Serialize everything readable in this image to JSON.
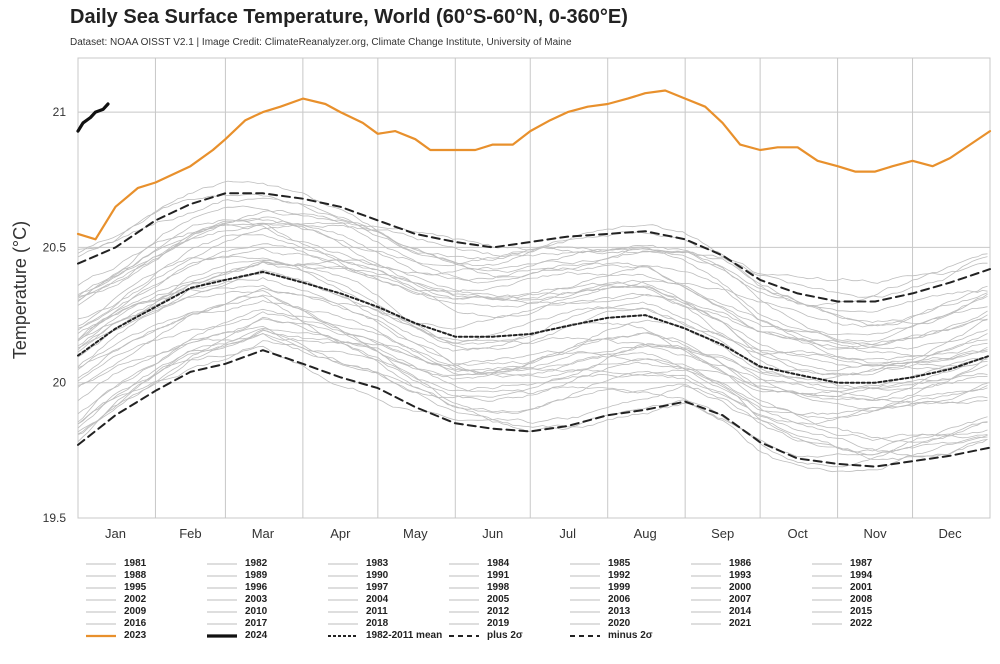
{
  "chart_data": {
    "type": "line",
    "title": "Daily Sea Surface Temperature, World (60°S-60°N, 0-360°E)",
    "subtitle": "Dataset: NOAA OISST V2.1 | Image Credit: ClimateReanalyzer.org, Climate Change Institute, University of Maine",
    "xlabel": "",
    "ylabel": "Temperature (°C)",
    "ylim": [
      19.5,
      21.2
    ],
    "xlim": [
      1,
      366
    ],
    "yticks": [
      19.5,
      20,
      20.5,
      21
    ],
    "ytick_labels": [
      "19.5",
      "20",
      "20.5",
      "21"
    ],
    "month_labels": [
      "Jan",
      "Feb",
      "Mar",
      "Apr",
      "May",
      "Jun",
      "Jul",
      "Aug",
      "Sep",
      "Oct",
      "Nov",
      "Dec"
    ],
    "month_label_days": [
      16,
      46,
      75,
      106,
      136,
      167,
      197,
      228,
      259,
      289,
      320,
      350
    ],
    "month_boundaries": [
      32,
      60,
      91,
      121,
      152,
      182,
      213,
      244,
      274,
      305,
      335
    ],
    "grid": true,
    "legend_position": "bottom",
    "series": [
      {
        "name": "1982-2011 mean",
        "style": "mean",
        "color": "#222222",
        "x": [
          1,
          16,
          32,
          46,
          60,
          75,
          91,
          106,
          121,
          136,
          152,
          167,
          182,
          197,
          213,
          228,
          244,
          259,
          274,
          289,
          305,
          320,
          335,
          350,
          366
        ],
        "y": [
          20.1,
          20.2,
          20.28,
          20.35,
          20.38,
          20.41,
          20.37,
          20.33,
          20.28,
          20.22,
          20.17,
          20.17,
          20.18,
          20.21,
          20.24,
          20.25,
          20.2,
          20.14,
          20.06,
          20.03,
          20.0,
          20.0,
          20.02,
          20.05,
          20.1
        ]
      },
      {
        "name": "plus 2σ",
        "style": "plus2",
        "color": "#222222",
        "x": [
          1,
          16,
          32,
          46,
          60,
          75,
          91,
          106,
          121,
          136,
          152,
          167,
          182,
          197,
          213,
          228,
          244,
          259,
          274,
          289,
          305,
          320,
          335,
          350,
          366
        ],
        "y": [
          20.44,
          20.5,
          20.6,
          20.66,
          20.7,
          20.7,
          20.68,
          20.65,
          20.6,
          20.55,
          20.52,
          20.5,
          20.52,
          20.54,
          20.55,
          20.56,
          20.53,
          20.47,
          20.38,
          20.33,
          20.3,
          20.3,
          20.33,
          20.37,
          20.42
        ]
      },
      {
        "name": "minus 2σ",
        "style": "minus2",
        "color": "#222222",
        "x": [
          1,
          16,
          32,
          46,
          60,
          75,
          91,
          106,
          121,
          136,
          152,
          167,
          182,
          197,
          213,
          228,
          244,
          259,
          274,
          289,
          305,
          320,
          335,
          350,
          366
        ],
        "y": [
          19.77,
          19.88,
          19.97,
          20.04,
          20.07,
          20.12,
          20.07,
          20.02,
          19.98,
          19.91,
          19.85,
          19.83,
          19.82,
          19.84,
          19.88,
          19.9,
          19.93,
          19.88,
          19.78,
          19.72,
          19.7,
          19.69,
          19.71,
          19.73,
          19.76
        ]
      },
      {
        "name": "2023",
        "style": "y2023",
        "color": "#e8902c",
        "x": [
          1,
          8,
          16,
          25,
          32,
          46,
          55,
          60,
          68,
          75,
          82,
          91,
          100,
          106,
          115,
          121,
          128,
          136,
          142,
          152,
          160,
          167,
          175,
          182,
          190,
          197,
          205,
          213,
          221,
          228,
          236,
          244,
          252,
          259,
          266,
          274,
          281,
          289,
          297,
          305,
          312,
          320,
          327,
          335,
          343,
          350,
          358,
          366
        ],
        "y": [
          20.55,
          20.53,
          20.65,
          20.72,
          20.74,
          20.8,
          20.86,
          20.9,
          20.97,
          21.0,
          21.02,
          21.05,
          21.03,
          21.0,
          20.96,
          20.92,
          20.93,
          20.9,
          20.86,
          20.86,
          20.86,
          20.88,
          20.88,
          20.93,
          20.97,
          21.0,
          21.02,
          21.03,
          21.05,
          21.07,
          21.08,
          21.05,
          21.02,
          20.96,
          20.88,
          20.86,
          20.87,
          20.87,
          20.82,
          20.8,
          20.78,
          20.78,
          20.8,
          20.82,
          20.8,
          20.83,
          20.88,
          20.93
        ]
      },
      {
        "name": "2024",
        "style": "y2024",
        "color": "#111111",
        "x": [
          1,
          3,
          6,
          8,
          11,
          13
        ],
        "y": [
          20.93,
          20.96,
          20.98,
          21.0,
          21.01,
          21.03
        ]
      }
    ],
    "legend": [
      "1981",
      "1982",
      "1983",
      "1984",
      "1985",
      "1986",
      "1987",
      "1988",
      "1989",
      "1990",
      "1991",
      "1992",
      "1993",
      "1994",
      "1995",
      "1996",
      "1997",
      "1998",
      "1999",
      "2000",
      "2001",
      "2002",
      "2003",
      "2004",
      "2005",
      "2006",
      "2007",
      "2008",
      "2009",
      "2010",
      "2011",
      "2012",
      "2013",
      "2014",
      "2015",
      "2016",
      "2017",
      "2018",
      "2019",
      "2020",
      "2021",
      "2022",
      "2023",
      "2024",
      "1982-2011 mean",
      "plus 2σ",
      "minus 2σ"
    ],
    "legend_styles": {
      "2023": "y2023",
      "2024": "y2024",
      "1982-2011 mean": "mean",
      "plus 2σ": "plus2",
      "minus 2σ": "minus2"
    },
    "colors": {
      "background_year": "#bdbdbd",
      "highlight_2023": "#e8902c",
      "highlight_2024": "#111111",
      "stats": "#222222",
      "grid": "#c8c8c8"
    }
  }
}
